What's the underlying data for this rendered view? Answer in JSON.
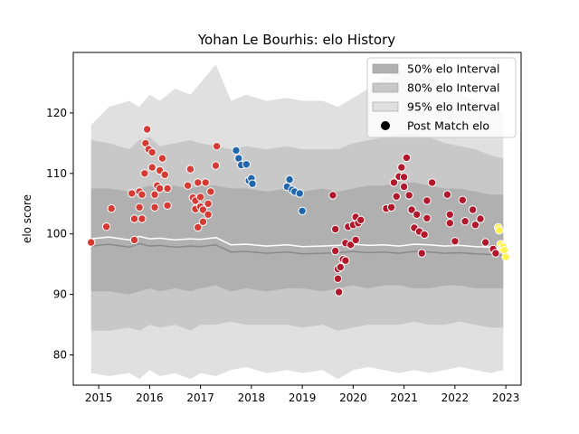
{
  "chart_data": {
    "type": "scatter",
    "title": "Yohan Le Bourhis: elo History",
    "xlabel": "",
    "ylabel": "elo score",
    "xlim": [
      2014.5,
      2023.3
    ],
    "ylim": [
      75,
      130
    ],
    "x_ticks": [
      2015,
      2016,
      2017,
      2018,
      2019,
      2020,
      2021,
      2022,
      2023
    ],
    "y_ticks": [
      80,
      90,
      100,
      110,
      120
    ],
    "grid": false,
    "legend_position": "top-right",
    "legend": [
      {
        "label": "50% elo Interval",
        "kind": "band",
        "color": "#b0b0b0"
      },
      {
        "label": "80% elo Interval",
        "kind": "band",
        "color": "#c8c8c8"
      },
      {
        "label": "95% elo Interval",
        "kind": "band",
        "color": "#e0e0e0"
      },
      {
        "label": "Post Match elo",
        "kind": "marker",
        "color": "#000000"
      }
    ],
    "colors": {
      "band95": "#e0e0e0",
      "band80": "#c8c8c8",
      "band50": "#b0b0b0",
      "median_line": "#ffffff",
      "median_line_dark": "#8a8a8a"
    },
    "median": {
      "x": [
        2014.85,
        2015.2,
        2015.6,
        2015.8,
        2016.0,
        2016.2,
        2016.5,
        2016.8,
        2017.0,
        2017.3,
        2017.6,
        2017.9,
        2018.3,
        2018.7,
        2019.0,
        2019.4,
        2019.7,
        2020.0,
        2020.3,
        2020.6,
        2020.9,
        2021.2,
        2021.5,
        2021.8,
        2022.1,
        2022.4,
        2022.7,
        2022.95
      ],
      "y": [
        99.2,
        99.5,
        99.0,
        99.6,
        99.2,
        99.3,
        99.0,
        99.2,
        99.1,
        99.4,
        98.2,
        98.3,
        98.0,
        98.2,
        97.9,
        98.0,
        98.1,
        98.3,
        98.1,
        98.2,
        98.0,
        98.3,
        98.2,
        98.0,
        98.1,
        97.9,
        97.8,
        97.6
      ]
    },
    "bands": {
      "band95": {
        "lower": [
          77.0,
          76.5,
          77.0,
          76.0,
          77.5,
          76.5,
          77.0,
          76.0,
          77.0,
          76.5,
          77.5,
          78.0,
          77.0,
          77.5,
          77.0,
          77.5,
          76.0,
          77.5,
          78.0,
          77.5,
          77.0,
          77.5,
          77.0,
          77.5,
          78.0,
          77.5,
          77.0,
          77.5
        ],
        "upper": [
          118.0,
          121.0,
          122.0,
          121.0,
          123.0,
          122.0,
          124.0,
          123.0,
          125.0,
          128.0,
          122.0,
          123.0,
          122.0,
          122.5,
          122.0,
          122.0,
          121.0,
          122.5,
          124.0,
          126.0,
          127.0,
          127.5,
          126.5,
          125.0,
          123.0,
          122.0,
          121.0,
          120.0
        ]
      },
      "band80": {
        "lower": [
          84.0,
          84.0,
          84.5,
          84.0,
          85.0,
          84.5,
          85.0,
          84.0,
          85.0,
          85.0,
          85.5,
          85.0,
          85.0,
          85.0,
          84.5,
          85.0,
          84.0,
          84.5,
          85.0,
          85.0,
          85.0,
          85.5,
          85.0,
          85.0,
          85.5,
          85.0,
          84.5,
          84.5
        ],
        "upper": [
          115.5,
          115.0,
          114.0,
          115.5,
          116.0,
          114.5,
          115.0,
          115.5,
          115.0,
          114.5,
          114.0,
          114.5,
          114.0,
          114.5,
          114.0,
          114.0,
          114.0,
          115.0,
          115.5,
          116.0,
          116.5,
          116.5,
          116.0,
          115.0,
          114.5,
          114.0,
          113.0,
          112.5
        ]
      },
      "band50": {
        "lower": [
          90.5,
          90.5,
          90.0,
          90.5,
          91.0,
          90.5,
          91.0,
          90.5,
          91.0,
          91.5,
          90.5,
          91.0,
          90.5,
          91.0,
          91.0,
          90.5,
          91.0,
          91.5,
          91.0,
          91.5,
          91.5,
          91.0,
          91.0,
          91.5,
          91.5,
          91.0,
          91.0,
          91.0
        ],
        "upper": [
          107.5,
          107.5,
          107.0,
          107.5,
          108.0,
          107.5,
          108.0,
          107.5,
          108.0,
          108.0,
          107.5,
          107.5,
          107.0,
          107.5,
          107.0,
          107.5,
          107.0,
          107.5,
          108.0,
          108.0,
          108.5,
          108.5,
          108.0,
          107.5,
          107.5,
          107.0,
          106.5,
          106.5
        ]
      }
    },
    "series": [
      {
        "color": "#d63b33",
        "points": [
          [
            2014.85,
            98.6
          ],
          [
            2015.15,
            101.2
          ],
          [
            2015.25,
            104.2
          ],
          [
            2015.65,
            106.7
          ],
          [
            2015.7,
            102.5
          ],
          [
            2015.7,
            99.0
          ],
          [
            2015.8,
            104.4
          ],
          [
            2015.8,
            107.0
          ],
          [
            2015.85,
            102.5
          ],
          [
            2015.85,
            106.5
          ],
          [
            2015.9,
            110.0
          ],
          [
            2015.92,
            115.0
          ],
          [
            2015.95,
            117.3
          ],
          [
            2015.98,
            114.0
          ],
          [
            2016.05,
            113.5
          ],
          [
            2016.05,
            111.0
          ],
          [
            2016.1,
            106.5
          ],
          [
            2016.1,
            104.4
          ],
          [
            2016.15,
            108.0
          ],
          [
            2016.2,
            107.5
          ],
          [
            2016.2,
            110.5
          ],
          [
            2016.25,
            112.5
          ],
          [
            2016.3,
            109.8
          ],
          [
            2016.35,
            107.5
          ],
          [
            2016.35,
            104.7
          ],
          [
            2016.75,
            108.0
          ],
          [
            2016.8,
            110.7
          ],
          [
            2016.85,
            106.0
          ],
          [
            2016.9,
            105.5
          ],
          [
            2016.9,
            104.1
          ],
          [
            2016.95,
            108.5
          ],
          [
            2016.95,
            101.1
          ],
          [
            2017.0,
            106.1
          ],
          [
            2017.0,
            104.5
          ],
          [
            2017.05,
            102.0
          ],
          [
            2017.05,
            104.0
          ],
          [
            2017.1,
            108.5
          ],
          [
            2017.15,
            105.0
          ],
          [
            2017.15,
            103.2
          ],
          [
            2017.2,
            107.0
          ],
          [
            2017.3,
            111.3
          ],
          [
            2017.32,
            114.5
          ]
        ]
      },
      {
        "color": "#2166ac",
        "points": [
          [
            2017.7,
            113.8
          ],
          [
            2017.75,
            112.5
          ],
          [
            2017.8,
            111.4
          ],
          [
            2017.9,
            111.5
          ],
          [
            2017.95,
            108.8
          ],
          [
            2018.0,
            109.2
          ],
          [
            2018.02,
            108.3
          ],
          [
            2018.7,
            107.8
          ],
          [
            2018.75,
            109.0
          ],
          [
            2018.8,
            107.3
          ],
          [
            2018.85,
            107.0
          ],
          [
            2018.95,
            106.7
          ],
          [
            2019.0,
            103.8
          ]
        ]
      },
      {
        "color": "#b2182b",
        "points": [
          [
            2019.6,
            106.4
          ],
          [
            2019.65,
            100.8
          ],
          [
            2019.65,
            97.2
          ],
          [
            2019.7,
            94.2
          ],
          [
            2019.7,
            92.6
          ],
          [
            2019.72,
            90.4
          ],
          [
            2019.75,
            94.5
          ],
          [
            2019.8,
            95.8
          ],
          [
            2019.85,
            95.6
          ],
          [
            2019.85,
            98.5
          ],
          [
            2019.9,
            101.2
          ],
          [
            2019.95,
            98.2
          ],
          [
            2020.0,
            101.5
          ],
          [
            2020.05,
            99.0
          ],
          [
            2020.05,
            102.8
          ],
          [
            2020.1,
            101.8
          ],
          [
            2020.15,
            102.3
          ],
          [
            2020.65,
            104.2
          ],
          [
            2020.75,
            104.4
          ],
          [
            2020.8,
            108.5
          ],
          [
            2020.85,
            106.2
          ],
          [
            2020.9,
            109.5
          ],
          [
            2020.95,
            111.0
          ],
          [
            2021.0,
            107.8
          ],
          [
            2021.0,
            109.4
          ],
          [
            2021.05,
            112.6
          ],
          [
            2021.1,
            106.4
          ],
          [
            2021.15,
            104.0
          ],
          [
            2021.2,
            101.0
          ],
          [
            2021.25,
            103.2
          ],
          [
            2021.3,
            100.4
          ],
          [
            2021.35,
            96.8
          ],
          [
            2021.4,
            99.9
          ],
          [
            2021.45,
            102.6
          ],
          [
            2021.45,
            105.5
          ],
          [
            2021.55,
            108.5
          ],
          [
            2021.85,
            106.5
          ],
          [
            2021.9,
            103.2
          ],
          [
            2021.9,
            101.8
          ],
          [
            2022.0,
            98.8
          ],
          [
            2022.15,
            105.6
          ],
          [
            2022.2,
            102.1
          ],
          [
            2022.35,
            104.0
          ],
          [
            2022.4,
            101.5
          ],
          [
            2022.5,
            102.5
          ],
          [
            2022.6,
            98.6
          ],
          [
            2022.75,
            97.5
          ],
          [
            2022.8,
            96.8
          ]
        ]
      },
      {
        "color": "#fff44f",
        "points": [
          [
            2022.85,
            101.1
          ],
          [
            2022.87,
            100.6
          ],
          [
            2022.9,
            98.3
          ],
          [
            2022.92,
            97.6
          ],
          [
            2022.95,
            97.9
          ],
          [
            2022.97,
            97.3
          ],
          [
            2023.0,
            96.2
          ]
        ]
      }
    ]
  }
}
